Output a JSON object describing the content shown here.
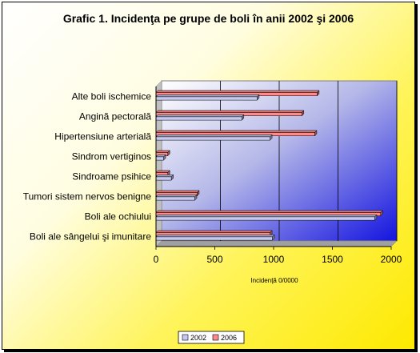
{
  "chart_data": {
    "type": "bar",
    "orientation": "horizontal",
    "title": "Grafic 1. Incidenţa pe grupe de boli în anii 2002 şi 2006",
    "xlabel": "Incidenţă 0/0000",
    "ylabel": "",
    "xlim": [
      0,
      2000
    ],
    "xticks": [
      "0",
      "500",
      "1000",
      "1500",
      "2000"
    ],
    "grid": true,
    "legend_position": "bottom-right",
    "categories": [
      "Alte boli ischemice",
      "Angină pectorală",
      "Hipertensiune arterială",
      "Sindrom vertiginos",
      "Sindroame psihice",
      "Tumori sistem nervos benigne",
      "Boli ale ochiului",
      "Boli ale sângelui şi imunitare"
    ],
    "series": [
      {
        "name": "2002",
        "values": [
          860,
          730,
          970,
          65,
          130,
          330,
          1860,
          990
        ],
        "color": "#c7c9ef"
      },
      {
        "name": "2006",
        "values": [
          1370,
          1240,
          1350,
          100,
          100,
          350,
          1910,
          970
        ],
        "color": "#ff8a8a"
      }
    ]
  }
}
